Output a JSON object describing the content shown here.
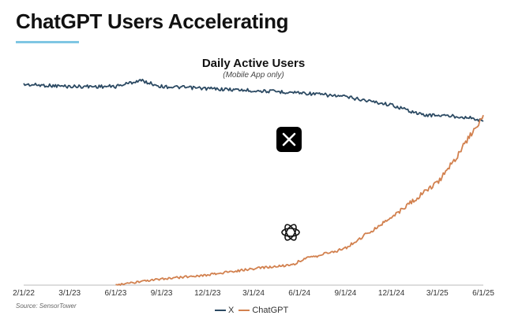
{
  "headline": "ChatGPT Users Accelerating",
  "source": "Source: SensorTower",
  "colors": {
    "x": "#2c4a63",
    "chatgpt": "#d2814f",
    "accent": "#7fc6e3"
  },
  "icons": {
    "x_logo": "x-logo-icon",
    "openai_logo": "openai-logo-icon"
  },
  "chart_data": {
    "type": "line",
    "title": "Daily Active Users",
    "subtitle": "(Mobile App only)",
    "x_ticks": [
      "2/1/22",
      "3/1/23",
      "6/1/23",
      "9/1/23",
      "12/1/23",
      "3/1/24",
      "6/1/24",
      "9/1/24",
      "12/1/24",
      "3/1/25",
      "6/1/25"
    ],
    "y_axis_labeled": false,
    "grid": false,
    "legend_position": "bottom",
    "series": [
      {
        "name": "X",
        "x": [
          "2/1/22",
          "3/1/23",
          "6/1/23",
          "7/20/23",
          "9/1/23",
          "12/1/23",
          "3/1/24",
          "6/1/24",
          "9/1/24",
          "12/1/24",
          "2/1/25",
          "3/1/25",
          "5/1/25",
          "6/1/25"
        ],
        "y": [
          0.98,
          0.97,
          0.97,
          1.0,
          0.97,
          0.96,
          0.95,
          0.94,
          0.92,
          0.88,
          0.83,
          0.83,
          0.82,
          0.8
        ]
      },
      {
        "name": "ChatGPT",
        "x": [
          "6/1/23",
          "9/1/23",
          "12/1/23",
          "3/1/24",
          "5/20/24",
          "6/1/24",
          "9/1/24",
          "12/1/24",
          "3/1/25",
          "4/15/25",
          "6/1/25"
        ],
        "y": [
          0.0,
          0.03,
          0.05,
          0.08,
          0.1,
          0.12,
          0.18,
          0.33,
          0.5,
          0.65,
          0.83
        ]
      }
    ]
  }
}
